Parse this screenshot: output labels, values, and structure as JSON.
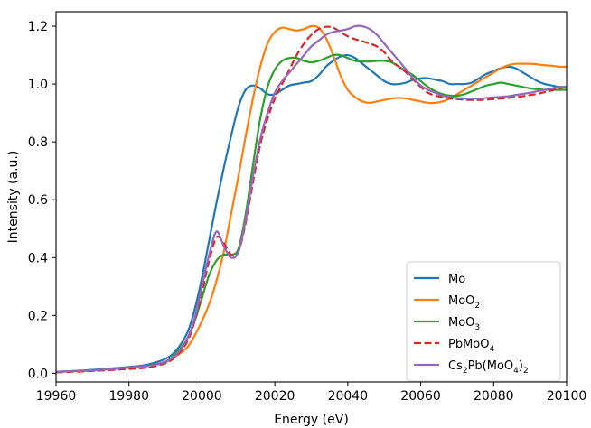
{
  "chart_data": {
    "type": "line",
    "title": "",
    "xlabel": "Energy (eV)",
    "ylabel": "Intensity (a.u.)",
    "xlim": [
      19960,
      20100
    ],
    "ylim": [
      -0.03,
      1.25
    ],
    "xticks": [
      19960,
      19980,
      20000,
      20020,
      20040,
      20060,
      20080,
      20100
    ],
    "yticks": [
      0.0,
      0.2,
      0.4,
      0.6,
      0.8,
      1.0,
      1.2
    ],
    "xtick_labels": [
      "19960",
      "19980",
      "20000",
      "20020",
      "20040",
      "20060",
      "20080",
      "20100"
    ],
    "ytick_labels": [
      "0.0",
      "0.2",
      "0.4",
      "0.6",
      "0.8",
      "1.0",
      "1.2"
    ],
    "grid": false,
    "legend_position": "bottom-right",
    "series": [
      {
        "name": "Mo",
        "legend": {
          "main": "Mo",
          "parts": []
        },
        "color": "#1f77b4",
        "dash": "solid",
        "x": [
          19960,
          19970,
          19980,
          19985,
          19990,
          19993,
          19996,
          19998,
          20000,
          20002,
          20004,
          20006,
          20008,
          20010,
          20012,
          20014,
          20016,
          20018,
          20020,
          20022,
          20024,
          20026,
          20028,
          20030,
          20032,
          20034,
          20036,
          20038,
          20040,
          20042,
          20044,
          20046,
          20048,
          20050,
          20052,
          20054,
          20056,
          20058,
          20060,
          20062,
          20064,
          20066,
          20068,
          20070,
          20072,
          20074,
          20076,
          20078,
          20080,
          20082,
          20084,
          20086,
          20088,
          20090,
          20092,
          20094,
          20096,
          20098,
          20100
        ],
        "y": [
          0.005,
          0.012,
          0.022,
          0.03,
          0.05,
          0.08,
          0.14,
          0.22,
          0.33,
          0.46,
          0.59,
          0.71,
          0.82,
          0.92,
          0.98,
          0.995,
          0.985,
          0.965,
          0.965,
          0.98,
          0.995,
          1.0,
          1.005,
          1.01,
          1.03,
          1.06,
          1.08,
          1.095,
          1.1,
          1.09,
          1.07,
          1.05,
          1.03,
          1.01,
          1.0,
          1.0,
          1.005,
          1.015,
          1.02,
          1.02,
          1.015,
          1.01,
          1.0,
          1.0,
          1.0,
          1.005,
          1.02,
          1.035,
          1.045,
          1.055,
          1.06,
          1.055,
          1.04,
          1.025,
          1.01,
          1.0,
          0.995,
          0.99,
          0.99
        ]
      },
      {
        "name": "MoO2",
        "legend": {
          "main": "MoO",
          "parts": [
            {
              "text": "2",
              "sub": true
            }
          ]
        },
        "color": "#ff7f0e",
        "dash": "solid",
        "x": [
          19960,
          19970,
          19980,
          19985,
          19990,
          19993,
          19996,
          19998,
          20000,
          20002,
          20004,
          20006,
          20008,
          20010,
          20012,
          20014,
          20016,
          20018,
          20020,
          20022,
          20024,
          20026,
          20028,
          20030,
          20032,
          20034,
          20036,
          20038,
          20040,
          20042,
          20044,
          20046,
          20048,
          20050,
          20052,
          20054,
          20056,
          20058,
          20060,
          20062,
          20064,
          20066,
          20068,
          20070,
          20072,
          20074,
          20076,
          20078,
          20080,
          20082,
          20084,
          20086,
          20088,
          20090,
          20092,
          20094,
          20096,
          20098,
          20100
        ],
        "y": [
          0.005,
          0.01,
          0.02,
          0.025,
          0.038,
          0.06,
          0.09,
          0.13,
          0.18,
          0.24,
          0.32,
          0.42,
          0.55,
          0.68,
          0.82,
          0.95,
          1.06,
          1.14,
          1.18,
          1.195,
          1.19,
          1.185,
          1.19,
          1.2,
          1.195,
          1.16,
          1.1,
          1.03,
          0.98,
          0.955,
          0.94,
          0.935,
          0.94,
          0.945,
          0.95,
          0.952,
          0.95,
          0.945,
          0.94,
          0.935,
          0.935,
          0.94,
          0.95,
          0.965,
          0.98,
          0.995,
          1.01,
          1.025,
          1.04,
          1.055,
          1.065,
          1.07,
          1.07,
          1.07,
          1.068,
          1.065,
          1.063,
          1.06,
          1.06
        ]
      },
      {
        "name": "MoO3",
        "legend": {
          "main": "MoO",
          "parts": [
            {
              "text": "3",
              "sub": true
            }
          ]
        },
        "color": "#2ca02c",
        "dash": "solid",
        "x": [
          19960,
          19970,
          19980,
          19985,
          19990,
          19993,
          19996,
          19998,
          20000,
          20002,
          20004,
          20006,
          20008,
          20010,
          20012,
          20014,
          20016,
          20018,
          20020,
          20022,
          20024,
          20026,
          20028,
          20030,
          20032,
          20034,
          20036,
          20038,
          20040,
          20042,
          20044,
          20046,
          20048,
          20050,
          20052,
          20054,
          20056,
          20058,
          20060,
          20062,
          20064,
          20066,
          20068,
          20070,
          20072,
          20074,
          20076,
          20078,
          20080,
          20082,
          20084,
          20086,
          20088,
          20090,
          20092,
          20094,
          20096,
          20098,
          20100
        ],
        "y": [
          0.005,
          0.01,
          0.02,
          0.025,
          0.04,
          0.07,
          0.12,
          0.18,
          0.26,
          0.34,
          0.39,
          0.41,
          0.41,
          0.43,
          0.55,
          0.72,
          0.88,
          0.99,
          1.05,
          1.08,
          1.09,
          1.09,
          1.08,
          1.075,
          1.08,
          1.09,
          1.1,
          1.1,
          1.09,
          1.08,
          1.078,
          1.078,
          1.08,
          1.08,
          1.075,
          1.06,
          1.045,
          1.03,
          1.01,
          0.99,
          0.975,
          0.965,
          0.96,
          0.96,
          0.965,
          0.975,
          0.985,
          0.995,
          1.0,
          1.005,
          1.0,
          0.995,
          0.99,
          0.985,
          0.982,
          0.98,
          0.98,
          0.98,
          0.98
        ]
      },
      {
        "name": "PbMoO4",
        "legend": {
          "main": "PbMoO",
          "parts": [
            {
              "text": "4",
              "sub": true
            }
          ]
        },
        "color": "#d62728",
        "dash": "dashed",
        "x": [
          19960,
          19970,
          19980,
          19985,
          19990,
          19993,
          19996,
          19998,
          20000,
          20002,
          20004,
          20006,
          20008,
          20010,
          20012,
          20014,
          20016,
          20018,
          20020,
          20022,
          20024,
          20026,
          20028,
          20030,
          20032,
          20034,
          20036,
          20038,
          20040,
          20042,
          20044,
          20046,
          20048,
          20050,
          20052,
          20054,
          20056,
          20058,
          20060,
          20062,
          20064,
          20066,
          20068,
          20070,
          20072,
          20074,
          20076,
          20078,
          20080,
          20082,
          20084,
          20086,
          20088,
          20090,
          20092,
          20094,
          20096,
          20098,
          20100
        ],
        "y": [
          0.003,
          0.008,
          0.015,
          0.02,
          0.035,
          0.06,
          0.11,
          0.18,
          0.28,
          0.39,
          0.47,
          0.45,
          0.41,
          0.42,
          0.52,
          0.66,
          0.79,
          0.88,
          0.95,
          1.0,
          1.05,
          1.1,
          1.14,
          1.17,
          1.19,
          1.198,
          1.195,
          1.18,
          1.165,
          1.155,
          1.148,
          1.14,
          1.13,
          1.11,
          1.08,
          1.06,
          1.04,
          1.015,
          0.99,
          0.97,
          0.96,
          0.955,
          0.95,
          0.948,
          0.946,
          0.945,
          0.945,
          0.946,
          0.948,
          0.95,
          0.952,
          0.955,
          0.958,
          0.962,
          0.966,
          0.972,
          0.978,
          0.985,
          0.99
        ]
      },
      {
        "name": "Cs2Pb(MoO4)2",
        "legend": {
          "main": "Cs",
          "parts": [
            {
              "text": "2",
              "sub": true
            },
            {
              "text": "Pb(MoO",
              "sub": false
            },
            {
              "text": "4",
              "sub": true
            },
            {
              "text": ")",
              "sub": false
            },
            {
              "text": "2",
              "sub": true
            }
          ]
        },
        "color": "#9467bd",
        "dash": "solid",
        "x": [
          19960,
          19970,
          19980,
          19985,
          19990,
          19993,
          19996,
          19998,
          20000,
          20002,
          20004,
          20006,
          20008,
          20010,
          20012,
          20014,
          20016,
          20018,
          20020,
          20022,
          20024,
          20026,
          20028,
          20030,
          20032,
          20034,
          20036,
          20038,
          20040,
          20042,
          20044,
          20046,
          20048,
          20050,
          20052,
          20054,
          20056,
          20058,
          20060,
          20062,
          20064,
          20066,
          20068,
          20070,
          20072,
          20074,
          20076,
          20078,
          20080,
          20082,
          20084,
          20086,
          20088,
          20090,
          20092,
          20094,
          20096,
          20098,
          20100
        ],
        "y": [
          0.005,
          0.01,
          0.02,
          0.025,
          0.04,
          0.065,
          0.12,
          0.19,
          0.3,
          0.41,
          0.49,
          0.44,
          0.4,
          0.42,
          0.53,
          0.68,
          0.81,
          0.9,
          0.97,
          1.01,
          1.04,
          1.07,
          1.1,
          1.13,
          1.15,
          1.17,
          1.18,
          1.185,
          1.19,
          1.2,
          1.2,
          1.19,
          1.17,
          1.14,
          1.11,
          1.08,
          1.05,
          1.02,
          0.995,
          0.98,
          0.97,
          0.96,
          0.955,
          0.952,
          0.95,
          0.95,
          0.95,
          0.952,
          0.954,
          0.956,
          0.958,
          0.962,
          0.966,
          0.97,
          0.975,
          0.98,
          0.985,
          0.99,
          0.99
        ]
      }
    ]
  }
}
